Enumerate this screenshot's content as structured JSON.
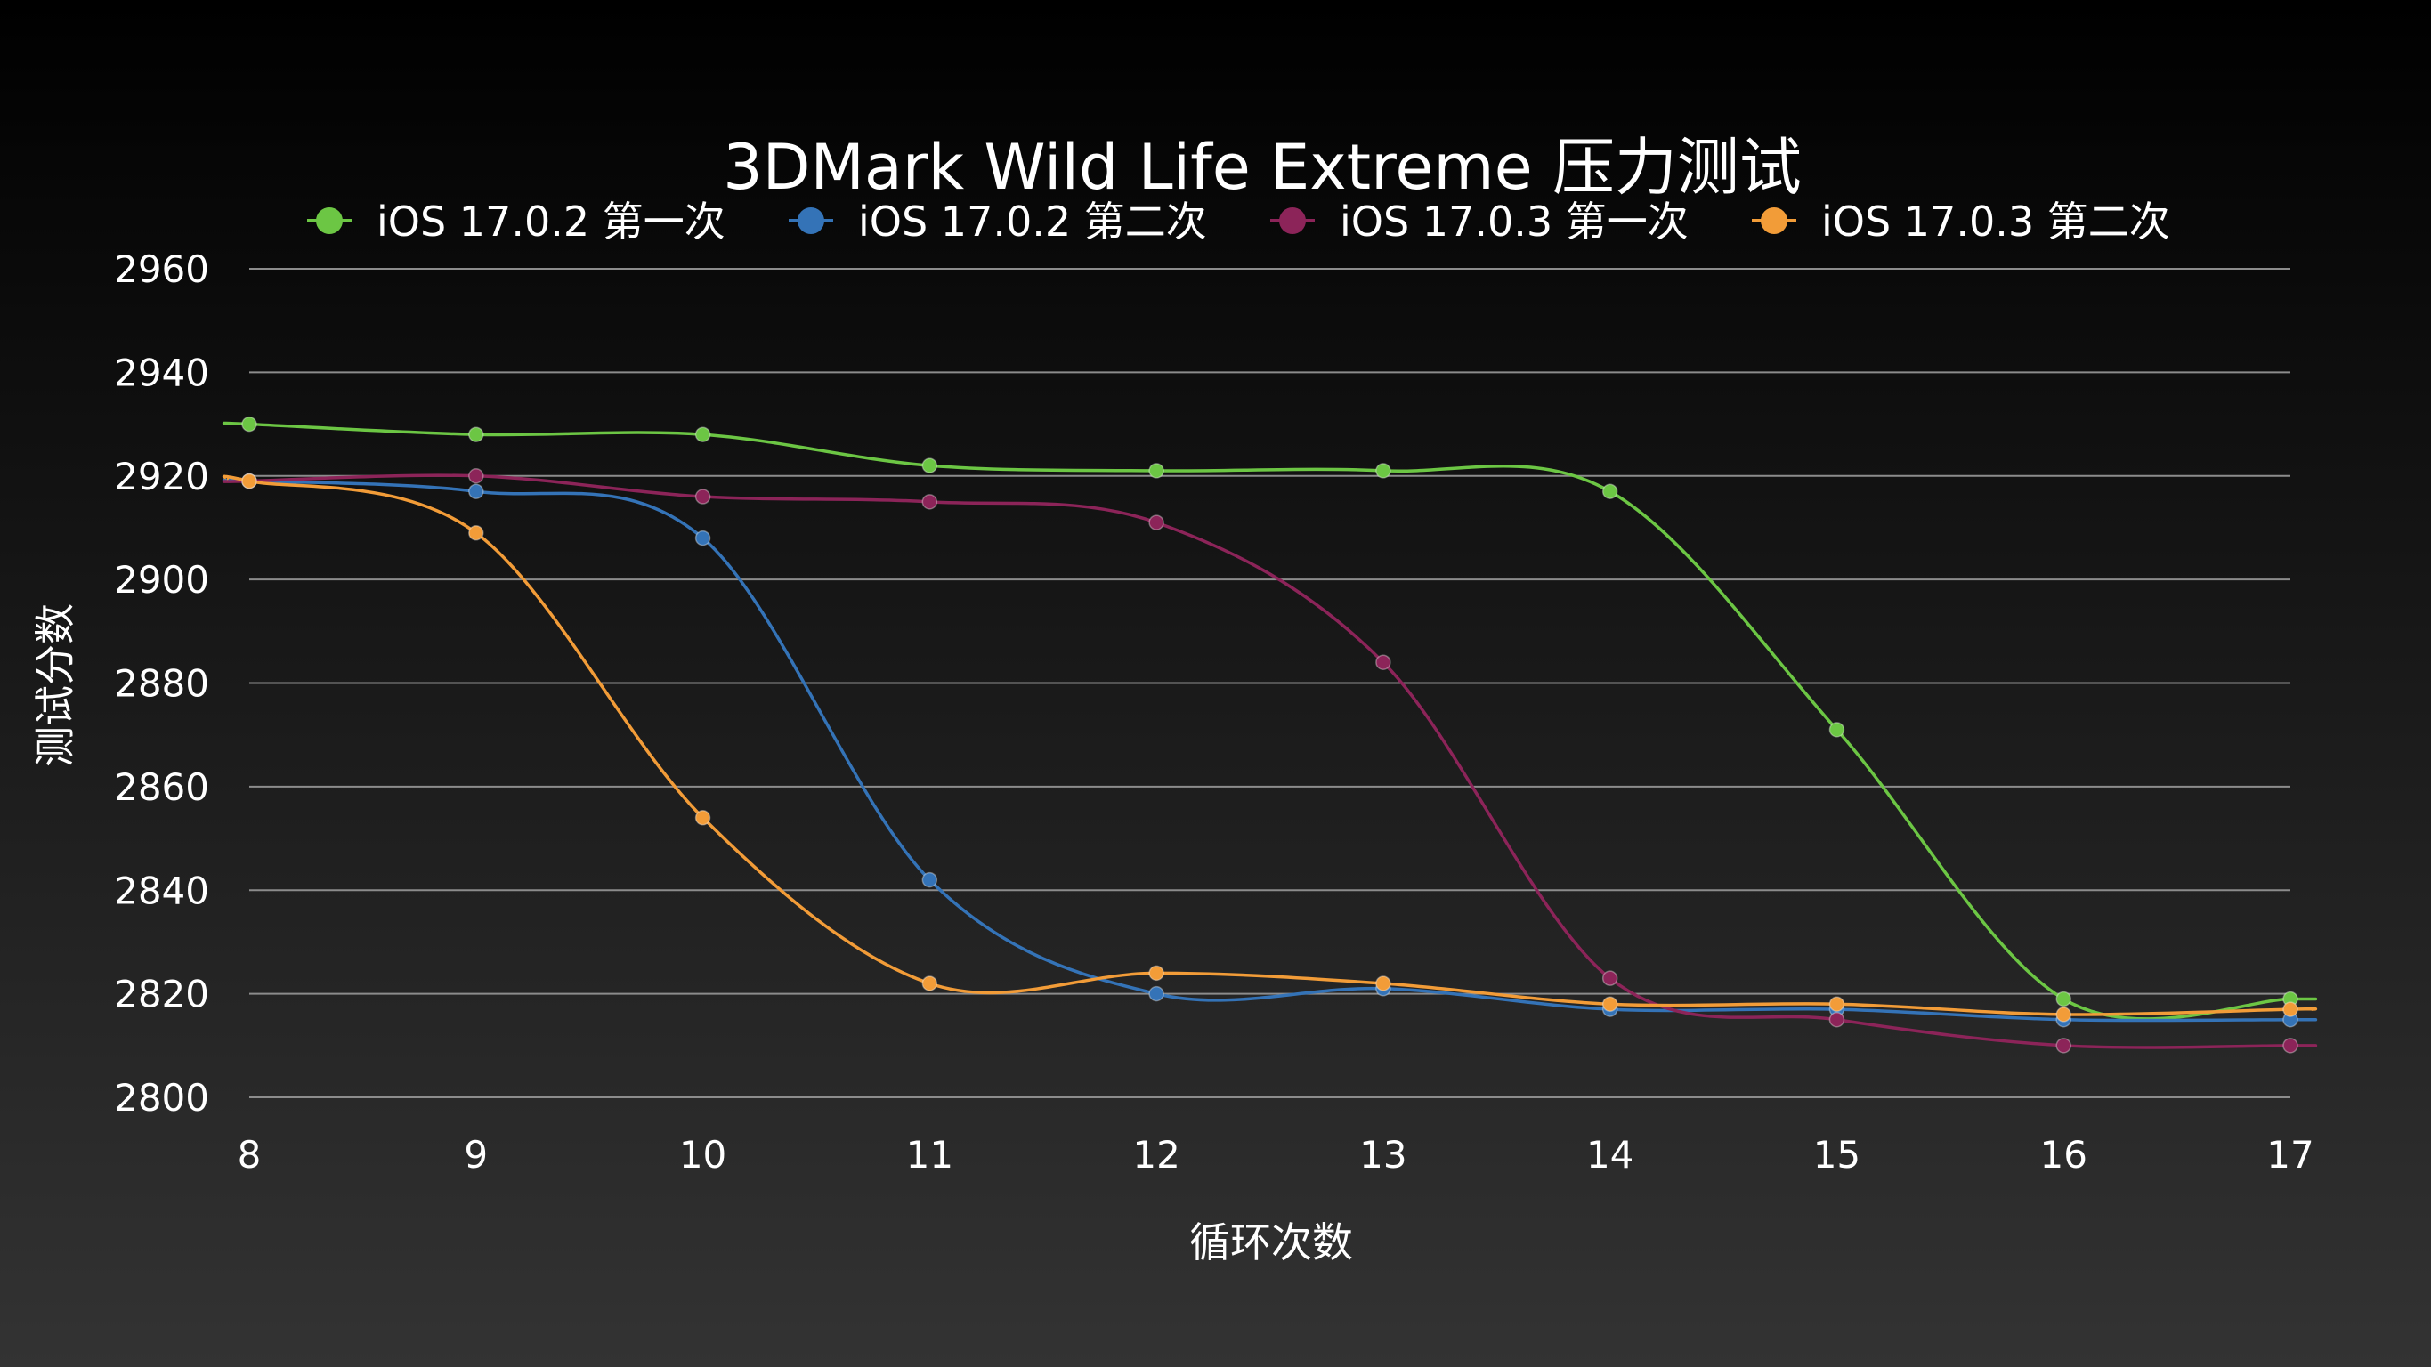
{
  "chart_data": {
    "type": "line",
    "title": "3DMark Wild Life Extreme 压力测试",
    "xlabel": "循环次数",
    "ylabel": "测试分数",
    "x": [
      8,
      9,
      10,
      11,
      12,
      13,
      14,
      15,
      16,
      17
    ],
    "xlim": [
      8,
      17
    ],
    "ylim": [
      2800,
      2960
    ],
    "yticks": [
      2800,
      2820,
      2840,
      2860,
      2880,
      2900,
      2920,
      2940,
      2960
    ],
    "grid": true,
    "legend_position": "top",
    "series": [
      {
        "name": "iOS 17.0.2 第一次",
        "color": "#6cc644",
        "values": [
          2930,
          2928,
          2928,
          2922,
          2921,
          2921,
          2917,
          2871,
          2819,
          2819
        ]
      },
      {
        "name": "iOS 17.0.2 第二次",
        "color": "#3473b7",
        "values": [
          2919,
          2917,
          2908,
          2842,
          2820,
          2821,
          2817,
          2817,
          2815,
          2815
        ]
      },
      {
        "name": "iOS 17.0.3 第一次",
        "color": "#8c2459",
        "values": [
          2919,
          2920,
          2916,
          2915,
          2911,
          2884,
          2823,
          2815,
          2810,
          2810
        ]
      },
      {
        "name": "iOS 17.0.3 第二次",
        "color": "#f29c38",
        "values": [
          2919,
          2909,
          2854,
          2822,
          2824,
          2822,
          2818,
          2818,
          2816,
          2817
        ]
      }
    ]
  }
}
